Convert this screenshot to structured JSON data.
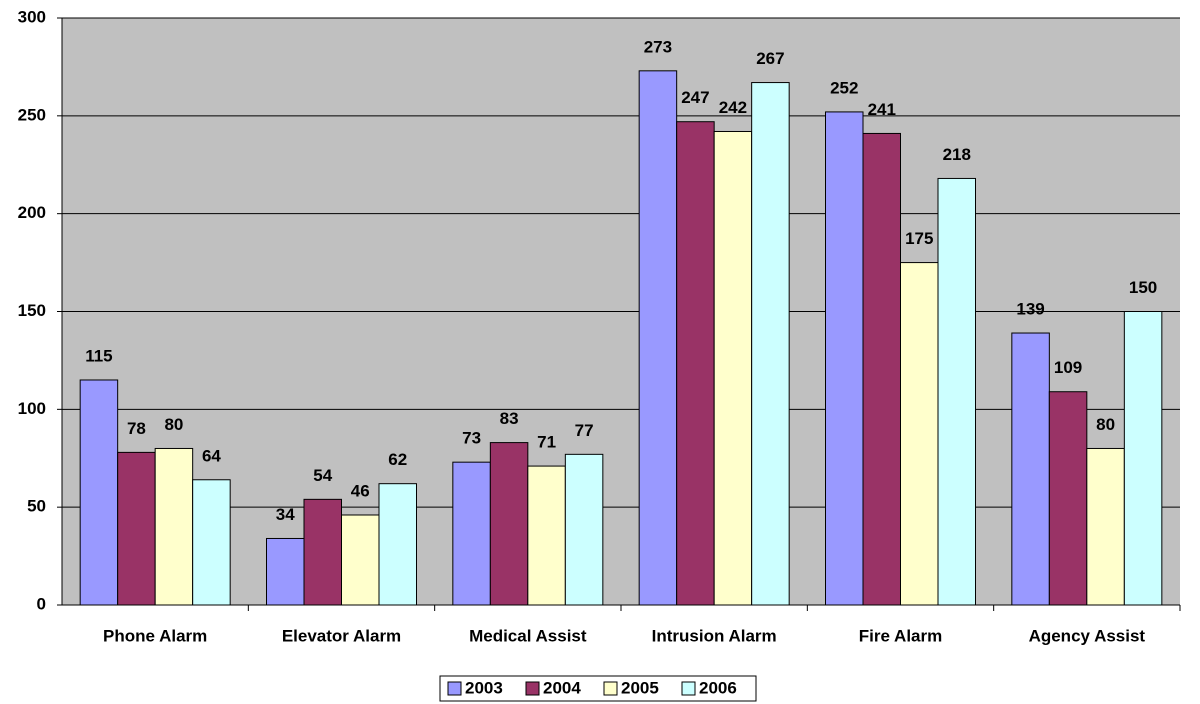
{
  "chart_data": {
    "type": "bar",
    "categories": [
      "Phone Alarm",
      "Elevator Alarm",
      "Medical Assist",
      "Intrusion Alarm",
      "Fire Alarm",
      "Agency Assist"
    ],
    "series": [
      {
        "name": "2003",
        "color": "#9999ff",
        "values": [
          115,
          34,
          73,
          273,
          252,
          139
        ]
      },
      {
        "name": "2004",
        "color": "#993366",
        "values": [
          78,
          54,
          83,
          247,
          241,
          109
        ]
      },
      {
        "name": "2005",
        "color": "#ffffcc",
        "values": [
          80,
          46,
          71,
          242,
          175,
          80
        ]
      },
      {
        "name": "2006",
        "color": "#ccffff",
        "values": [
          64,
          62,
          77,
          267,
          218,
          150
        ]
      }
    ],
    "ylim": [
      0,
      300
    ],
    "yticks": [
      0,
      50,
      100,
      150,
      200,
      250,
      300
    ],
    "grid": true,
    "legend": "bottom"
  }
}
